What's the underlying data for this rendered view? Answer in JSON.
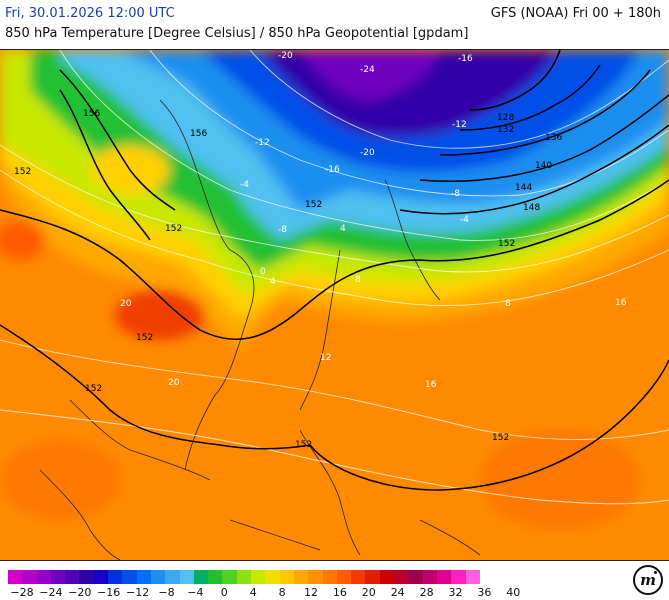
{
  "header": {
    "datetime": "Fri, 30.01.2026 12:00 UTC",
    "model_run": "GFS (NOAA) Fri 00 + 180h",
    "subtitle": "850 hPa Temperature [Degree Celsius] / 850 hPa Geopotential [gpdam]"
  },
  "map": {
    "type": "weather-map",
    "region": "East Asia / Western Pacific",
    "geopotential_labels": [
      "152",
      "152",
      "152",
      "152",
      "152",
      "152",
      "152",
      "152",
      "148",
      "144",
      "140",
      "136",
      "132",
      "128",
      "156",
      "156"
    ],
    "temperature_labels": [
      "-24",
      "-20",
      "-20",
      "-16",
      "-16",
      "-12",
      "-12",
      "-8",
      "-8",
      "-4",
      "-4",
      "0",
      "4",
      "4",
      "8",
      "8",
      "12",
      "16",
      "20",
      "20",
      "16"
    ]
  },
  "legend": {
    "tick_labels": [
      "−28",
      "−24",
      "−20",
      "−16",
      "−12",
      "−8",
      "−4",
      "0",
      "4",
      "8",
      "12",
      "16",
      "20",
      "24",
      "28",
      "32",
      "36",
      "40"
    ],
    "colors": [
      "#d400c8",
      "#b400c8",
      "#9400c8",
      "#7000c0",
      "#5000b8",
      "#3000a8",
      "#1800c8",
      "#0030e0",
      "#0050e8",
      "#0070f0",
      "#1e8ef0",
      "#3aa8f0",
      "#50c0f0",
      "#00b060",
      "#20c030",
      "#50d020",
      "#90e010",
      "#c8e800",
      "#f0e000",
      "#ffc800",
      "#ffa800",
      "#ff9000",
      "#ff7800",
      "#ff5a00",
      "#f03c00",
      "#e01e00",
      "#d00000",
      "#b8002a",
      "#a0004a",
      "#c0006a",
      "#e00090",
      "#ff20c0",
      "#ff60e0"
    ],
    "logo_text": "m"
  }
}
